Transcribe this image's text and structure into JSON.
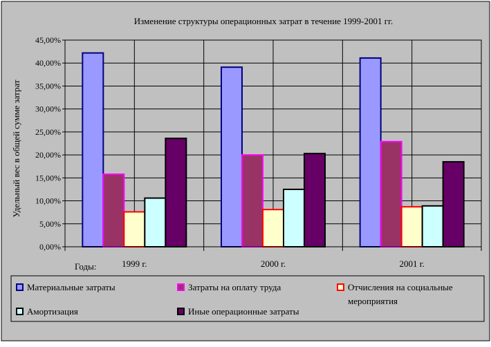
{
  "chart_data": {
    "type": "bar",
    "title": "Изменение структуры операционных затрат в течение 1999-2001 гг.",
    "xlabel": "Годы:",
    "ylabel": "Удельный вес в общей сумме затрат",
    "categories": [
      "1999 г.",
      "2000 г.",
      "2001 г."
    ],
    "ylim": [
      0,
      45
    ],
    "yticks": [
      "0,00%",
      "5,00%",
      "10,00%",
      "15,00%",
      "20,00%",
      "25,00%",
      "30,00%",
      "35,00%",
      "40,00%",
      "45,00%"
    ],
    "grid": true,
    "legend_position": "bottom",
    "series": [
      {
        "name": "Материальные затраты",
        "values": [
          42.2,
          39.1,
          41.1
        ],
        "color": "#9999ff",
        "border": "#000080"
      },
      {
        "name": "Затраты на оплату труда",
        "values": [
          15.8,
          20.0,
          22.9
        ],
        "color": "#993366",
        "border": "#ff00ff"
      },
      {
        "name": "Отчисления на социальные мероприятия",
        "values": [
          7.6,
          8.1,
          8.7
        ],
        "color": "#ffffcc",
        "border": "#ff0000"
      },
      {
        "name": "Амортизация",
        "values": [
          10.6,
          12.5,
          8.9
        ],
        "color": "#ccffff",
        "border": "#000000"
      },
      {
        "name": "Иные операционные затраты",
        "values": [
          23.6,
          20.3,
          18.5
        ],
        "color": "#660066",
        "border": "#000000"
      }
    ],
    "legend_lines": [
      [
        "Материальные затраты"
      ],
      [
        "Затраты на оплату труда"
      ],
      [
        "Отчисления на социальные",
        "мероприятия"
      ],
      [
        "Амортизация"
      ],
      [
        "Иные операционные затраты"
      ]
    ]
  }
}
